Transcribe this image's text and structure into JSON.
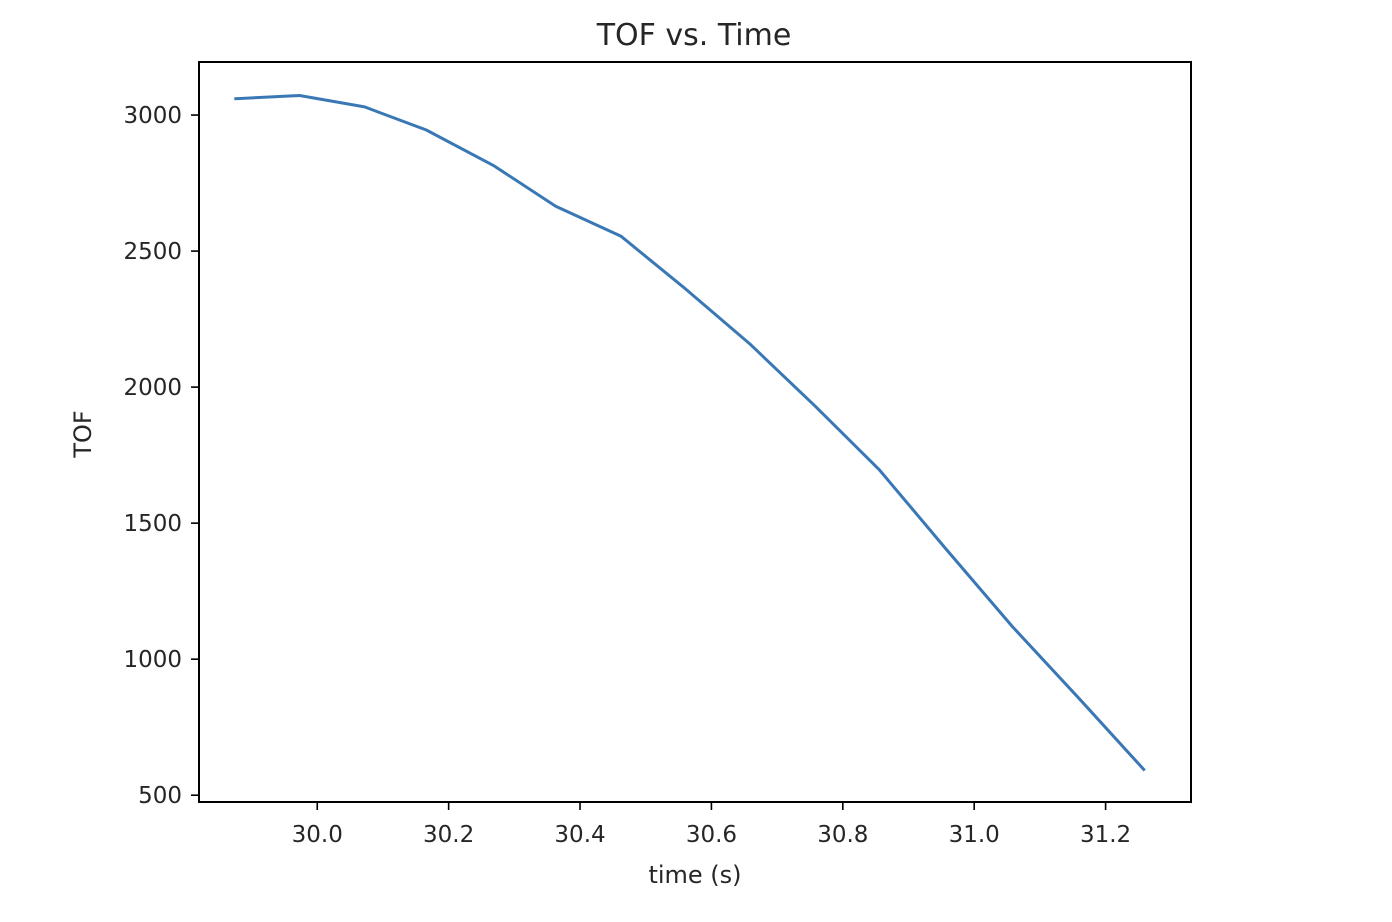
{
  "chart_data": {
    "type": "line",
    "title": "TOF vs. Time",
    "xlabel": "time (s)",
    "ylabel": "TOF",
    "xlim": [
      29.82,
      31.33
    ],
    "ylim": [
      475,
      3195
    ],
    "xticks": [
      30.0,
      30.2,
      30.4,
      30.6,
      30.8,
      31.0,
      31.2
    ],
    "xtick_labels": [
      "30.0",
      "30.2",
      "30.4",
      "30.6",
      "30.8",
      "31.0",
      "31.2"
    ],
    "yticks": [
      500,
      1000,
      1500,
      2000,
      2500,
      3000
    ],
    "ytick_labels": [
      "500",
      "1000",
      "1500",
      "2000",
      "2500",
      "3000"
    ],
    "grid": false,
    "series": [
      {
        "color": "#3a78b5",
        "x": [
          29.876,
          29.973,
          30.072,
          30.166,
          30.268,
          30.363,
          30.462,
          30.556,
          30.658,
          30.758,
          30.856,
          30.957,
          31.058,
          31.158,
          31.258
        ],
        "y": [
          3060,
          3072,
          3030,
          2945,
          2815,
          2665,
          2555,
          2370,
          2160,
          1930,
          1695,
          1405,
          1120,
          860,
          595
        ]
      }
    ]
  }
}
